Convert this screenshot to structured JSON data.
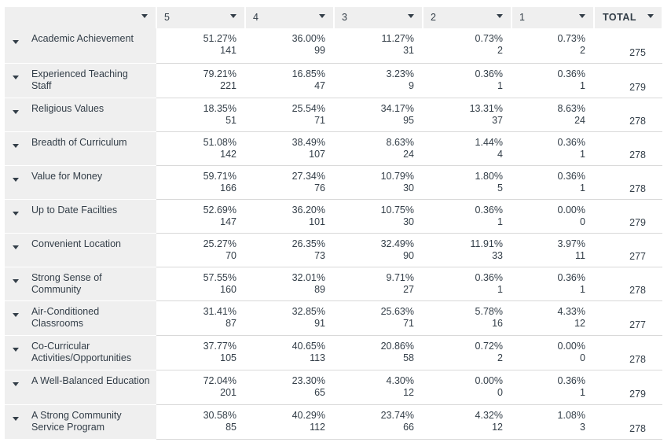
{
  "columns": [
    {
      "label": ""
    },
    {
      "label": "5"
    },
    {
      "label": "4"
    },
    {
      "label": "3"
    },
    {
      "label": "2"
    },
    {
      "label": "1"
    },
    {
      "label": "TOTAL"
    }
  ],
  "rows": [
    {
      "label": "Academic Achievement",
      "cells": [
        [
          "51.27%",
          "141"
        ],
        [
          "36.00%",
          "99"
        ],
        [
          "11.27%",
          "31"
        ],
        [
          "0.73%",
          "2"
        ],
        [
          "0.73%",
          "2"
        ]
      ],
      "total": "275"
    },
    {
      "label": "Experienced Teaching Staff",
      "cells": [
        [
          "79.21%",
          "221"
        ],
        [
          "16.85%",
          "47"
        ],
        [
          "3.23%",
          "9"
        ],
        [
          "0.36%",
          "1"
        ],
        [
          "0.36%",
          "1"
        ]
      ],
      "total": "279"
    },
    {
      "label": "Religious Values",
      "cells": [
        [
          "18.35%",
          "51"
        ],
        [
          "25.54%",
          "71"
        ],
        [
          "34.17%",
          "95"
        ],
        [
          "13.31%",
          "37"
        ],
        [
          "8.63%",
          "24"
        ]
      ],
      "total": "278"
    },
    {
      "label": "Breadth of Curriculum",
      "cells": [
        [
          "51.08%",
          "142"
        ],
        [
          "38.49%",
          "107"
        ],
        [
          "8.63%",
          "24"
        ],
        [
          "1.44%",
          "4"
        ],
        [
          "0.36%",
          "1"
        ]
      ],
      "total": "278"
    },
    {
      "label": "Value for Money",
      "cells": [
        [
          "59.71%",
          "166"
        ],
        [
          "27.34%",
          "76"
        ],
        [
          "10.79%",
          "30"
        ],
        [
          "1.80%",
          "5"
        ],
        [
          "0.36%",
          "1"
        ]
      ],
      "total": "278"
    },
    {
      "label": "Up to Date Facilties",
      "cells": [
        [
          "52.69%",
          "147"
        ],
        [
          "36.20%",
          "101"
        ],
        [
          "10.75%",
          "30"
        ],
        [
          "0.36%",
          "1"
        ],
        [
          "0.00%",
          "0"
        ]
      ],
      "total": "279"
    },
    {
      "label": "Convenient Location",
      "cells": [
        [
          "25.27%",
          "70"
        ],
        [
          "26.35%",
          "73"
        ],
        [
          "32.49%",
          "90"
        ],
        [
          "11.91%",
          "33"
        ],
        [
          "3.97%",
          "11"
        ]
      ],
      "total": "277"
    },
    {
      "label": "Strong Sense of Community",
      "cells": [
        [
          "57.55%",
          "160"
        ],
        [
          "32.01%",
          "89"
        ],
        [
          "9.71%",
          "27"
        ],
        [
          "0.36%",
          "1"
        ],
        [
          "0.36%",
          "1"
        ]
      ],
      "total": "278"
    },
    {
      "label": "Air-Conditioned Classrooms",
      "cells": [
        [
          "31.41%",
          "87"
        ],
        [
          "32.85%",
          "91"
        ],
        [
          "25.63%",
          "71"
        ],
        [
          "5.78%",
          "16"
        ],
        [
          "4.33%",
          "12"
        ]
      ],
      "total": "277"
    },
    {
      "label": "Co-Curricular Activities/Opportunities",
      "cells": [
        [
          "37.77%",
          "105"
        ],
        [
          "40.65%",
          "113"
        ],
        [
          "20.86%",
          "58"
        ],
        [
          "0.72%",
          "2"
        ],
        [
          "0.00%",
          "0"
        ]
      ],
      "total": "278"
    },
    {
      "label": "A Well-Balanced Education",
      "cells": [
        [
          "72.04%",
          "201"
        ],
        [
          "23.30%",
          "65"
        ],
        [
          "4.30%",
          "12"
        ],
        [
          "0.00%",
          "0"
        ],
        [
          "0.36%",
          "1"
        ]
      ],
      "total": "279"
    },
    {
      "label": "A Strong Community Service Program",
      "cells": [
        [
          "30.58%",
          "85"
        ],
        [
          "40.29%",
          "112"
        ],
        [
          "23.74%",
          "66"
        ],
        [
          "4.32%",
          "12"
        ],
        [
          "1.08%",
          "3"
        ]
      ],
      "total": "278"
    }
  ]
}
